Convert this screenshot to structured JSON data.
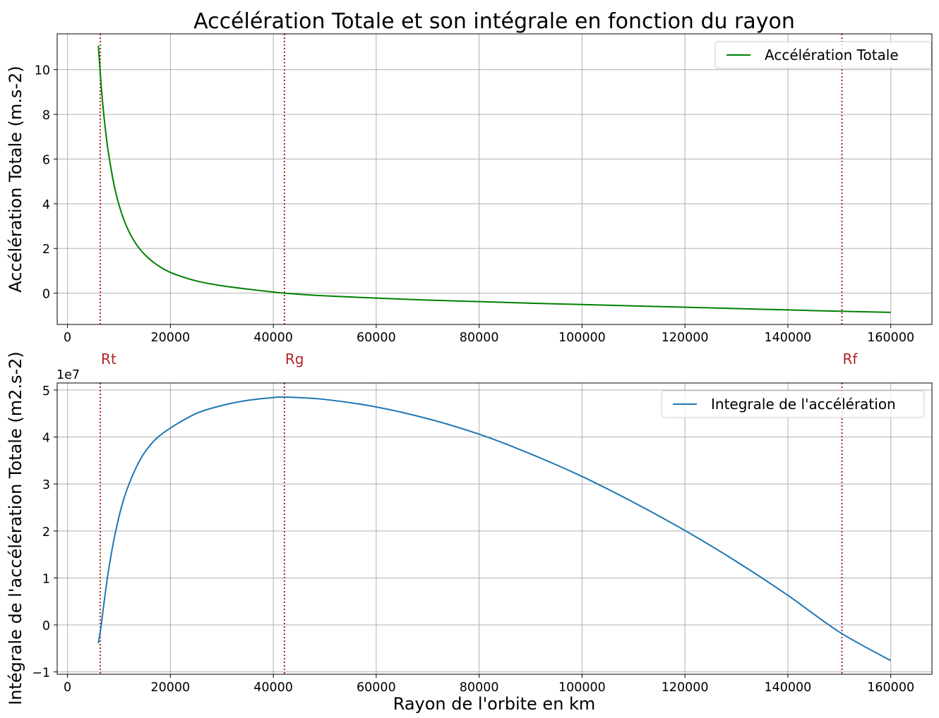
{
  "chart_data": [
    {
      "type": "line",
      "title": "Accélération Totale et son intégrale en fonction du rayon",
      "xlabel": "",
      "ylabel": "Accélération Totale (m.s-2)",
      "xlim": [
        -2000,
        168000
      ],
      "ylim": [
        -1.4,
        11.6
      ],
      "xticks": [
        0,
        20000,
        40000,
        60000,
        80000,
        100000,
        120000,
        140000,
        160000
      ],
      "yticks": [
        0,
        2,
        4,
        6,
        8,
        10
      ],
      "grid": true,
      "legend_position": "top-right",
      "series": [
        {
          "name": "Accélération Totale",
          "color": "#008000",
          "x": [
            6000,
            6500,
            7000,
            7500,
            8000,
            9000,
            10000,
            11000,
            12000,
            13000,
            14000,
            15000,
            17000,
            20000,
            25000,
            30000,
            35000,
            40000,
            42164,
            50000,
            60000,
            70000,
            80000,
            90000,
            100000,
            110000,
            120000,
            130000,
            140000,
            150000,
            160000
          ],
          "y": [
            11.07,
            9.42,
            8.12,
            7.07,
            6.22,
            4.9,
            3.96,
            3.26,
            2.73,
            2.32,
            1.99,
            1.73,
            1.33,
            0.93,
            0.55,
            0.33,
            0.18,
            0.05,
            0.0,
            -0.12,
            -0.22,
            -0.31,
            -0.38,
            -0.45,
            -0.51,
            -0.57,
            -0.63,
            -0.69,
            -0.75,
            -0.81,
            -0.86
          ]
        }
      ],
      "vlines": [
        {
          "x": 6378,
          "label": "Rt",
          "color": "#b22222"
        },
        {
          "x": 42164,
          "label": "Rg",
          "color": "#b22222"
        },
        {
          "x": 150500,
          "label": "Rf",
          "color": "#b22222"
        }
      ]
    },
    {
      "type": "line",
      "title": "",
      "xlabel": "Rayon de l'orbite en km",
      "ylabel": "Intégrale de l'accélération Totale (m2.s-2)",
      "y_offset_label": "1e7",
      "xlim": [
        -2000,
        168000
      ],
      "ylim": [
        -1.05,
        5.15
      ],
      "xticks": [
        0,
        20000,
        40000,
        60000,
        80000,
        100000,
        120000,
        140000,
        160000
      ],
      "yticks": [
        -1,
        0,
        1,
        2,
        3,
        4,
        5
      ],
      "grid": true,
      "legend_position": "top-right",
      "series": [
        {
          "name": "Integrale de l'accélération",
          "color": "#1f77b4",
          "x": [
            6000,
            6500,
            7000,
            7500,
            8000,
            9000,
            10000,
            11000,
            12000,
            13000,
            14000,
            15000,
            17000,
            20000,
            25000,
            30000,
            35000,
            40000,
            42164,
            50000,
            60000,
            70000,
            80000,
            90000,
            100000,
            110000,
            120000,
            130000,
            140000,
            150000,
            160000
          ],
          "y": [
            -0.39,
            -0.05,
            0.39,
            0.8,
            1.18,
            1.8,
            2.3,
            2.7,
            3.01,
            3.27,
            3.49,
            3.67,
            3.94,
            4.19,
            4.5,
            4.67,
            4.78,
            4.84,
            4.85,
            4.8,
            4.64,
            4.39,
            4.06,
            3.64,
            3.16,
            2.61,
            2.01,
            1.35,
            0.63,
            -0.15,
            -0.76
          ]
        }
      ],
      "vlines": [
        {
          "x": 6378,
          "color": "#b22222"
        },
        {
          "x": 42164,
          "color": "#b22222"
        },
        {
          "x": 150500,
          "color": "#b22222"
        }
      ]
    }
  ]
}
